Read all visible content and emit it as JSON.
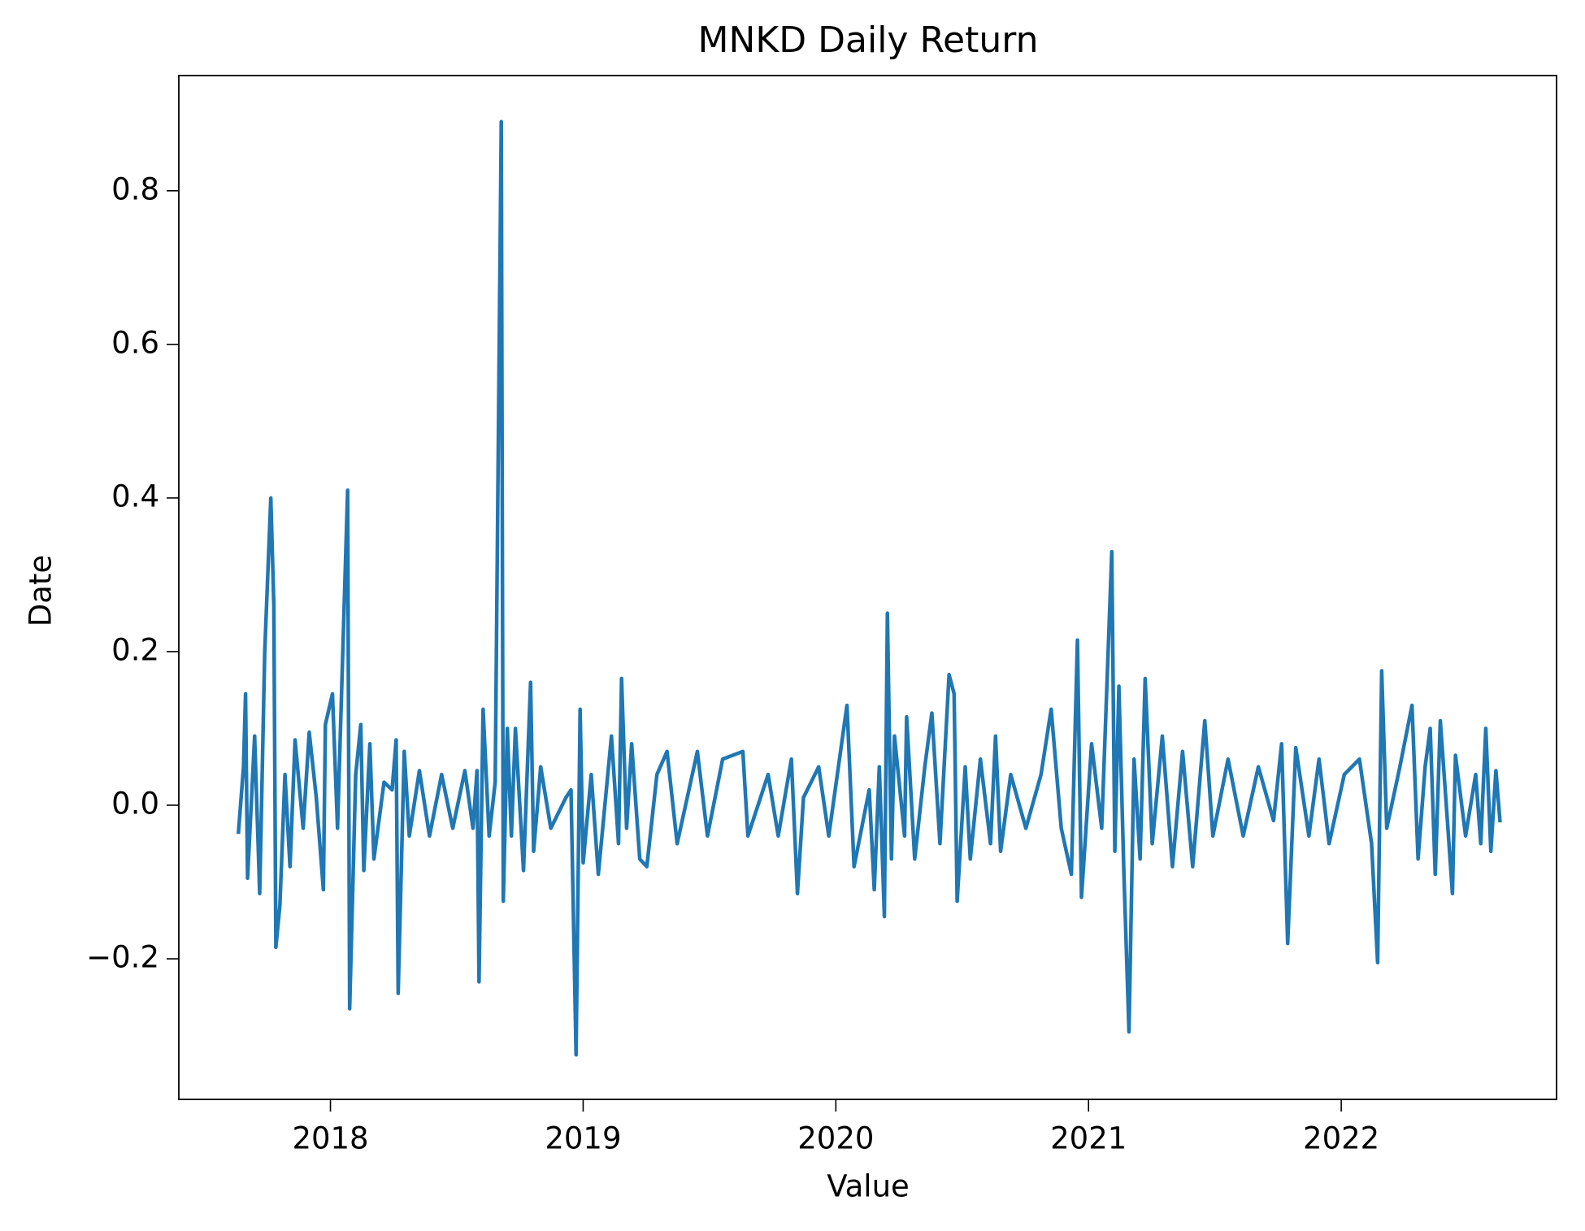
{
  "chart_data": {
    "type": "line",
    "title": "MNKD Daily Return",
    "x_label": "Value",
    "y_label": "Date",
    "color": "#1f77b4",
    "grid": false,
    "xlim": [
      2017.4,
      2022.852
    ],
    "ylim": [
      -0.383,
      0.95
    ],
    "xticks": [
      2018,
      2019,
      2020,
      2021,
      2022
    ],
    "yticks": [
      {
        "value": -0.2,
        "label": "−0.2"
      },
      {
        "value": 0,
        "label": "0.0"
      },
      0.2,
      0.4,
      0.6,
      0.8
    ],
    "x": [
      2017.636,
      2017.656,
      2017.664,
      2017.672,
      2017.7,
      2017.72,
      2017.74,
      2017.764,
      2017.776,
      2017.784,
      2017.8,
      2017.82,
      2017.84,
      2017.86,
      2017.892,
      2017.916,
      2017.944,
      2017.972,
      2017.98,
      2018.008,
      2018.028,
      2018.068,
      2018.076,
      2018.1,
      2018.12,
      2018.132,
      2018.156,
      2018.172,
      2018.212,
      2018.244,
      2018.26,
      2018.268,
      2018.292,
      2018.312,
      2018.352,
      2018.392,
      2018.44,
      2018.484,
      2018.532,
      2018.564,
      2018.58,
      2018.588,
      2018.604,
      2018.628,
      2018.652,
      2018.676,
      2018.684,
      2018.7,
      2018.716,
      2018.732,
      2018.764,
      2018.792,
      2018.804,
      2018.832,
      2018.872,
      2018.932,
      2018.952,
      2018.972,
      2018.988,
      2019.0,
      2019.032,
      2019.06,
      2019.112,
      2019.14,
      2019.152,
      2019.172,
      2019.192,
      2019.224,
      2019.252,
      2019.292,
      2019.332,
      2019.372,
      2019.452,
      2019.492,
      2019.552,
      2019.632,
      2019.652,
      2019.732,
      2019.772,
      2019.824,
      2019.848,
      2019.872,
      2019.932,
      2019.972,
      2020.044,
      2020.072,
      2020.132,
      2020.152,
      2020.172,
      2020.192,
      2020.204,
      2020.22,
      2020.232,
      2020.272,
      2020.28,
      2020.312,
      2020.352,
      2020.38,
      2020.412,
      2020.448,
      2020.468,
      2020.48,
      2020.512,
      2020.532,
      2020.572,
      2020.612,
      2020.632,
      2020.652,
      2020.692,
      2020.752,
      2020.812,
      2020.852,
      2020.892,
      2020.932,
      2020.956,
      2020.972,
      2021.012,
      2021.052,
      2021.092,
      2021.104,
      2021.12,
      2021.14,
      2021.16,
      2021.18,
      2021.204,
      2021.224,
      2021.252,
      2021.292,
      2021.332,
      2021.372,
      2021.412,
      2021.46,
      2021.492,
      2021.552,
      2021.612,
      2021.672,
      2021.732,
      2021.764,
      2021.788,
      2021.82,
      2021.872,
      2021.912,
      2021.952,
      2022.012,
      2022.072,
      2022.12,
      2022.144,
      2022.16,
      2022.18,
      2022.232,
      2022.28,
      2022.304,
      2022.332,
      2022.352,
      2022.372,
      2022.392,
      2022.42,
      2022.44,
      2022.452,
      2022.492,
      2022.532,
      2022.552,
      2022.572,
      2022.592,
      2022.612,
      2022.628
    ],
    "values": [
      -0.035,
      0.05,
      0.145,
      -0.095,
      0.09,
      -0.115,
      0.2,
      0.4,
      0.26,
      -0.185,
      -0.13,
      0.04,
      -0.08,
      0.085,
      -0.03,
      0.095,
      0.01,
      -0.11,
      0.105,
      0.145,
      -0.03,
      0.41,
      -0.265,
      0.04,
      0.105,
      -0.085,
      0.08,
      -0.07,
      0.03,
      0.02,
      0.085,
      -0.245,
      0.07,
      -0.04,
      0.045,
      -0.04,
      0.04,
      -0.03,
      0.045,
      -0.03,
      0.045,
      -0.23,
      0.125,
      -0.04,
      0.03,
      0.89,
      -0.125,
      0.1,
      -0.04,
      0.1,
      -0.085,
      0.16,
      -0.06,
      0.05,
      -0.03,
      0.01,
      0.02,
      -0.325,
      0.125,
      -0.075,
      0.04,
      -0.09,
      0.09,
      -0.05,
      0.165,
      -0.03,
      0.08,
      -0.07,
      -0.08,
      0.04,
      0.07,
      -0.05,
      0.07,
      -0.04,
      0.06,
      0.07,
      -0.04,
      0.04,
      -0.04,
      0.06,
      -0.115,
      0.01,
      0.05,
      -0.04,
      0.13,
      -0.08,
      0.02,
      -0.11,
      0.05,
      -0.145,
      0.25,
      -0.07,
      0.09,
      -0.04,
      0.115,
      -0.07,
      0.05,
      0.12,
      -0.05,
      0.17,
      0.145,
      -0.125,
      0.05,
      -0.07,
      0.06,
      -0.05,
      0.09,
      -0.06,
      0.04,
      -0.03,
      0.04,
      0.125,
      -0.03,
      -0.09,
      0.215,
      -0.12,
      0.08,
      -0.03,
      0.33,
      -0.06,
      0.155,
      -0.09,
      -0.295,
      0.06,
      -0.07,
      0.165,
      -0.05,
      0.09,
      -0.08,
      0.07,
      -0.08,
      0.11,
      -0.04,
      0.06,
      -0.04,
      0.05,
      -0.02,
      0.08,
      -0.18,
      0.075,
      -0.04,
      0.06,
      -0.05,
      0.04,
      0.06,
      -0.05,
      -0.205,
      0.175,
      -0.03,
      0.05,
      0.13,
      -0.07,
      0.05,
      0.1,
      -0.09,
      0.11,
      -0.02,
      -0.115,
      0.065,
      -0.04,
      0.04,
      -0.05,
      0.1,
      -0.06,
      0.045,
      -0.02
    ]
  }
}
